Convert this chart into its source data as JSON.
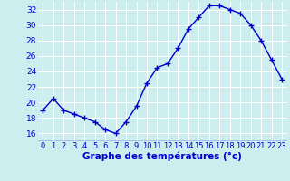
{
  "hours": [
    0,
    1,
    2,
    3,
    4,
    5,
    6,
    7,
    8,
    9,
    10,
    11,
    12,
    13,
    14,
    15,
    16,
    17,
    18,
    19,
    20,
    21,
    22,
    23
  ],
  "temps": [
    19.0,
    20.5,
    19.0,
    18.5,
    18.0,
    17.5,
    16.5,
    16.0,
    17.5,
    19.5,
    22.5,
    24.5,
    25.0,
    27.0,
    29.5,
    31.0,
    32.5,
    32.5,
    32.0,
    31.5,
    30.0,
    28.0,
    25.5,
    23.0
  ],
  "line_color": "#0000cc",
  "marker": "+",
  "marker_size": 4,
  "marker_edge_width": 1.0,
  "line_width": 1.0,
  "bg_color": "#cceeee",
  "grid_color": "#ffffff",
  "xlabel": "Graphe des températures (°c)",
  "xlabel_color": "#0000cc",
  "tick_color": "#0000cc",
  "label_color": "#0000cc",
  "ylim": [
    15.0,
    33.0
  ],
  "yticks": [
    16,
    18,
    20,
    22,
    24,
    26,
    28,
    30,
    32
  ],
  "xlim": [
    -0.5,
    23.5
  ],
  "xticks": [
    0,
    1,
    2,
    3,
    4,
    5,
    6,
    7,
    8,
    9,
    10,
    11,
    12,
    13,
    14,
    15,
    16,
    17,
    18,
    19,
    20,
    21,
    22,
    23
  ],
  "tick_fontsize": 6.0,
  "xlabel_fontsize": 7.5,
  "ytick_fontsize": 6.5
}
